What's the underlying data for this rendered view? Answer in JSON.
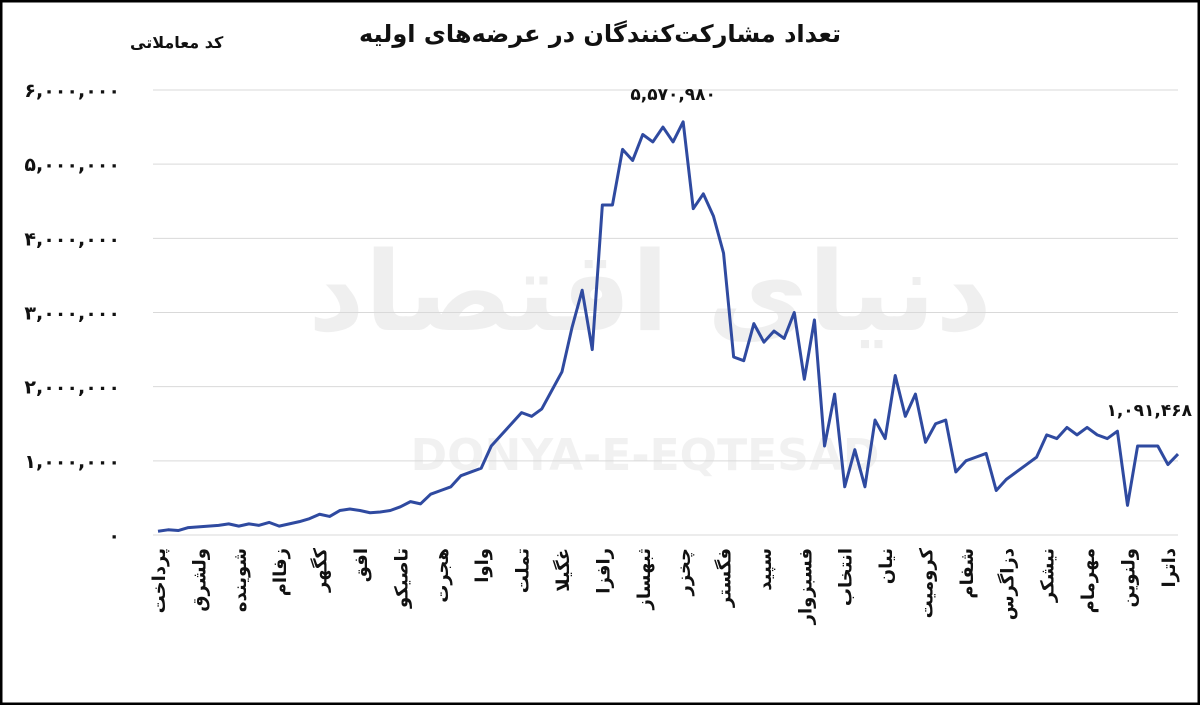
{
  "chart_data": {
    "type": "line",
    "title": "تعداد مشارکت‌کنندگان در عرضه‌های اولیه",
    "x_label": "کد معاملاتی",
    "watermark": [
      "دنیای اقتصاد",
      "DONYA-E-EQTESAD"
    ],
    "categories": [
      "پرداخت",
      null,
      null,
      null,
      "ولشرق",
      null,
      null,
      null,
      "شوینده",
      null,
      null,
      null,
      "زفاام",
      null,
      null,
      null,
      "کگهر",
      null,
      null,
      null,
      "افق",
      null,
      null,
      null,
      "تاصیکو",
      null,
      null,
      null,
      "هجرت",
      null,
      null,
      null,
      "واوا",
      null,
      null,
      null,
      "تملت",
      null,
      null,
      null,
      "غگیلا",
      null,
      null,
      null,
      "رافزا",
      null,
      null,
      null,
      "ثبهساز",
      null,
      null,
      null,
      "چخزر",
      null,
      null,
      null,
      "فگستر",
      null,
      null,
      null,
      "سپید",
      null,
      null,
      null,
      "فسبزوار",
      null,
      null,
      null,
      "انتخاب",
      null,
      null,
      null,
      "نیان",
      null,
      null,
      null,
      "کرومیت",
      null,
      null,
      null,
      "شفام",
      null,
      null,
      null,
      "دزاگرس",
      null,
      null,
      null,
      "نیشکر",
      null,
      null,
      null,
      "مهرمام",
      null,
      null,
      null,
      "ولنوین",
      null,
      null,
      null,
      "داترا",
      null
    ],
    "series": [
      {
        "name": "تعداد مشارکت‌کنندگان",
        "color": "#2f4aa0",
        "values": [
          50000,
          70000,
          60000,
          100000,
          110000,
          120000,
          130000,
          150000,
          120000,
          150000,
          130000,
          170000,
          120000,
          150000,
          180000,
          220000,
          280000,
          250000,
          330000,
          350000,
          330000,
          300000,
          310000,
          330000,
          380000,
          450000,
          420000,
          550000,
          600000,
          650000,
          800000,
          850000,
          900000,
          1200000,
          1350000,
          1500000,
          1650000,
          1600000,
          1700000,
          1950000,
          2200000,
          2800000,
          3300000,
          2500000,
          4450000,
          4450000,
          5200000,
          5050000,
          5400000,
          5300000,
          5500000,
          5300000,
          5570980,
          4400000,
          4600000,
          4300000,
          3800000,
          2400000,
          2350000,
          2850000,
          2600000,
          2750000,
          2650000,
          3000000,
          2100000,
          2900000,
          1200000,
          1900000,
          650000,
          1150000,
          650000,
          1550000,
          1300000,
          2150000,
          1600000,
          1900000,
          1250000,
          1500000,
          1550000,
          850000,
          1000000,
          1050000,
          1100000,
          600000,
          750000,
          850000,
          950000,
          1050000,
          1350000,
          1300000,
          1450000,
          1350000,
          1450000,
          1350000,
          1300000,
          1400000,
          400000,
          1200000,
          1200000,
          1200000,
          950000,
          1091468
        ],
        "value_labels": [
          null,
          null,
          null,
          null,
          null,
          null,
          null,
          null,
          null,
          null,
          null,
          null,
          null,
          null,
          null,
          null,
          null,
          null,
          null,
          null,
          null,
          null,
          null,
          null,
          null,
          null,
          null,
          null,
          null,
          null,
          null,
          null,
          null,
          null,
          null,
          null,
          null,
          null,
          null,
          null,
          null,
          null,
          null,
          null,
          null,
          null,
          null,
          null,
          null,
          null,
          null,
          null,
          "۵,۵۷۰,۹۸۰",
          null,
          null,
          null,
          null,
          null,
          null,
          null,
          null,
          null,
          null,
          null,
          null,
          null,
          null,
          null,
          null,
          null,
          null,
          null,
          null,
          null,
          null,
          null,
          null,
          null,
          null,
          null,
          null,
          null,
          null,
          null,
          null,
          null,
          null,
          null,
          null,
          null,
          null,
          null,
          null,
          null,
          null,
          null,
          null,
          null,
          null,
          null,
          null,
          "۱,۰۹۱,۴۶۸"
        ]
      }
    ],
    "ylim": [
      0,
      6000000
    ],
    "yticks": [
      {
        "value": 0,
        "label": "۰"
      },
      {
        "value": 1000000,
        "label": "۱,۰۰۰,۰۰۰"
      },
      {
        "value": 2000000,
        "label": "۲,۰۰۰,۰۰۰"
      },
      {
        "value": 3000000,
        "label": "۳,۰۰۰,۰۰۰"
      },
      {
        "value": 4000000,
        "label": "۴,۰۰۰,۰۰۰"
      },
      {
        "value": 5000000,
        "label": "۵,۰۰۰,۰۰۰"
      },
      {
        "value": 6000000,
        "label": "۶,۰۰۰,۰۰۰"
      }
    ],
    "grid": true
  }
}
